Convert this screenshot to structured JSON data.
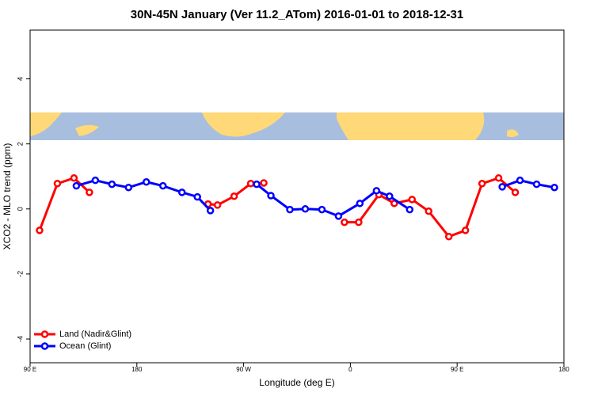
{
  "chart_data": {
    "type": "line",
    "title": "30N-45N January (Ver 11.2_ATom)   2016-01-01 to 2018-12-31",
    "x_label": "Longitude (deg E)",
    "y_label": "XCO2 - MLO trend (ppm)",
    "xlim": [
      90,
      540
    ],
    "ylim": [
      -4.73,
      5.5
    ],
    "xticks": [
      {
        "value": 90,
        "label": "90 E"
      },
      180,
      {
        "value": 270,
        "label": "90 W"
      },
      {
        "value": 360,
        "label": "0"
      },
      {
        "value": 450,
        "label": "90 E"
      },
      {
        "value": 540,
        "label": "180"
      }
    ],
    "yticks": [
      -4,
      -2,
      0,
      2,
      4
    ],
    "legend": "bottom-left",
    "series": [
      {
        "name": "Land (Nadir&Glint)",
        "color": "#ff0000",
        "x": [
          98,
          113,
          127,
          140,
          null,
          240,
          248,
          262,
          276,
          287,
          null,
          355,
          367,
          384,
          397,
          412,
          426,
          443,
          457,
          471,
          485,
          499
        ],
        "values": [
          -0.66,
          0.78,
          0.95,
          0.51,
          null,
          0.15,
          0.12,
          0.39,
          0.78,
          0.8,
          null,
          -0.41,
          -0.41,
          0.44,
          0.17,
          0.29,
          -0.07,
          -0.85,
          -0.66,
          0.78,
          0.95,
          0.51
        ]
      },
      {
        "name": "Ocean (Glint)",
        "color": "#0000ff",
        "x": [
          129,
          145,
          159,
          173,
          188,
          202,
          218,
          231,
          242,
          null,
          281,
          293,
          309,
          322,
          336,
          350,
          368,
          382,
          393,
          410,
          null,
          488,
          503,
          517,
          532
        ],
        "values": [
          0.71,
          0.88,
          0.76,
          0.66,
          0.83,
          0.71,
          0.51,
          0.37,
          -0.05,
          null,
          0.76,
          0.41,
          -0.02,
          0,
          -0.02,
          -0.22,
          0.17,
          0.56,
          0.39,
          -0.02,
          null,
          0.68,
          0.88,
          0.76,
          0.66
        ]
      }
    ]
  }
}
